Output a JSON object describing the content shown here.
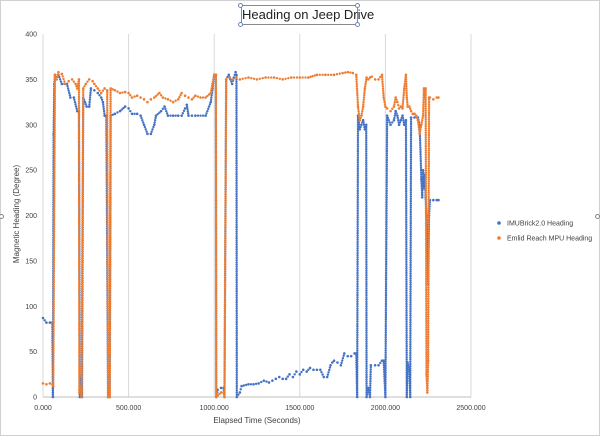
{
  "chart_data": {
    "type": "scatter",
    "title": "Heading on Jeep Drive",
    "xlabel": "Elapsed Time (Seconds)",
    "ylabel": "Magnetic Heading (Degree)",
    "xlim": [
      0,
      2500
    ],
    "ylim": [
      0,
      400
    ],
    "x_ticks": [
      "0.000",
      "500.000",
      "1000.000",
      "1500.000",
      "2000.000",
      "2500.000"
    ],
    "y_ticks": [
      "0",
      "50",
      "100",
      "150",
      "200",
      "250",
      "300",
      "350",
      "400"
    ],
    "grid": "vertical",
    "legend_position": "right",
    "series": [
      {
        "name": "IMUBrick2.0 Heading",
        "color": "#4472C4",
        "points": [
          [
            0,
            87
          ],
          [
            20,
            82
          ],
          [
            40,
            82
          ],
          [
            55,
            82
          ],
          [
            58,
            0
          ],
          [
            62,
            290
          ],
          [
            66,
            345
          ],
          [
            70,
            355
          ],
          [
            90,
            355
          ],
          [
            110,
            345
          ],
          [
            140,
            345
          ],
          [
            160,
            330
          ],
          [
            180,
            330
          ],
          [
            200,
            315
          ],
          [
            210,
            315
          ],
          [
            215,
            0
          ],
          [
            220,
            20
          ],
          [
            228,
            0
          ],
          [
            235,
            330
          ],
          [
            245,
            325
          ],
          [
            255,
            320
          ],
          [
            270,
            320
          ],
          [
            280,
            340
          ],
          [
            300,
            338
          ],
          [
            320,
            335
          ],
          [
            340,
            330
          ],
          [
            350,
            325
          ],
          [
            360,
            310
          ],
          [
            370,
            310
          ],
          [
            380,
            0
          ],
          [
            385,
            15
          ],
          [
            390,
            0
          ],
          [
            395,
            310
          ],
          [
            420,
            312
          ],
          [
            450,
            315
          ],
          [
            480,
            320
          ],
          [
            500,
            318
          ],
          [
            520,
            312
          ],
          [
            550,
            312
          ],
          [
            570,
            310
          ],
          [
            590,
            300
          ],
          [
            610,
            290
          ],
          [
            630,
            290
          ],
          [
            650,
            300
          ],
          [
            660,
            310
          ],
          [
            690,
            315
          ],
          [
            710,
            320
          ],
          [
            730,
            310
          ],
          [
            760,
            310
          ],
          [
            790,
            310
          ],
          [
            810,
            310
          ],
          [
            830,
            318
          ],
          [
            840,
            322
          ],
          [
            850,
            310
          ],
          [
            870,
            310
          ],
          [
            890,
            310
          ],
          [
            950,
            310
          ],
          [
            980,
            325
          ],
          [
            990,
            340
          ],
          [
            1000,
            355
          ],
          [
            1010,
            355
          ],
          [
            1012,
            0
          ],
          [
            1020,
            8
          ],
          [
            1040,
            10
          ],
          [
            1055,
            10
          ],
          [
            1060,
            0
          ],
          [
            1070,
            350
          ],
          [
            1085,
            355
          ],
          [
            1095,
            350
          ],
          [
            1105,
            345
          ],
          [
            1115,
            352
          ],
          [
            1125,
            358
          ],
          [
            1130,
            355
          ],
          [
            1132,
            0
          ],
          [
            1150,
            5
          ],
          [
            1160,
            12
          ],
          [
            1200,
            14
          ],
          [
            1230,
            14
          ],
          [
            1260,
            15
          ],
          [
            1290,
            18
          ],
          [
            1320,
            16
          ],
          [
            1340,
            18
          ],
          [
            1360,
            20
          ],
          [
            1380,
            22
          ],
          [
            1400,
            20
          ],
          [
            1420,
            20
          ],
          [
            1440,
            25
          ],
          [
            1460,
            22
          ],
          [
            1480,
            28
          ],
          [
            1500,
            25
          ],
          [
            1520,
            30
          ],
          [
            1540,
            28
          ],
          [
            1560,
            32
          ],
          [
            1580,
            30
          ],
          [
            1600,
            30
          ],
          [
            1620,
            30
          ],
          [
            1640,
            22
          ],
          [
            1660,
            22
          ],
          [
            1680,
            35
          ],
          [
            1690,
            38
          ],
          [
            1700,
            40
          ],
          [
            1720,
            38
          ],
          [
            1740,
            35
          ],
          [
            1760,
            48
          ],
          [
            1780,
            45
          ],
          [
            1800,
            45
          ],
          [
            1820,
            48
          ],
          [
            1830,
            48
          ],
          [
            1835,
            0
          ],
          [
            1840,
            310
          ],
          [
            1850,
            295
          ],
          [
            1860,
            300
          ],
          [
            1870,
            305
          ],
          [
            1880,
            295
          ],
          [
            1888,
            300
          ],
          [
            1890,
            0
          ],
          [
            1900,
            10
          ],
          [
            1910,
            0
          ],
          [
            1915,
            35
          ],
          [
            1940,
            35
          ],
          [
            1960,
            35
          ],
          [
            1980,
            40
          ],
          [
            1990,
            40
          ],
          [
            2000,
            0
          ],
          [
            2010,
            310
          ],
          [
            2030,
            300
          ],
          [
            2050,
            305
          ],
          [
            2060,
            315
          ],
          [
            2070,
            310
          ],
          [
            2080,
            300
          ],
          [
            2090,
            305
          ],
          [
            2100,
            310
          ],
          [
            2110,
            300
          ],
          [
            2120,
            305
          ],
          [
            2125,
            0
          ],
          [
            2130,
            38
          ],
          [
            2140,
            30
          ],
          [
            2145,
            0
          ],
          [
            2150,
            308
          ],
          [
            2170,
            308
          ],
          [
            2190,
            308
          ],
          [
            2200,
            300
          ],
          [
            2210,
            240
          ],
          [
            2215,
            220
          ],
          [
            2220,
            250
          ],
          [
            2225,
            230
          ],
          [
            2230,
            245
          ],
          [
            2235,
            220
          ],
          [
            2240,
            200
          ],
          [
            2245,
            160
          ],
          [
            2250,
            125
          ],
          [
            2255,
            200
          ],
          [
            2260,
            217
          ],
          [
            2280,
            217
          ],
          [
            2300,
            217
          ],
          [
            2310,
            217
          ]
        ]
      },
      {
        "name": "Emlid Reach MPU Heading",
        "color": "#ED7D31",
        "points": [
          [
            0,
            15
          ],
          [
            20,
            14
          ],
          [
            40,
            15
          ],
          [
            55,
            14
          ],
          [
            60,
            12
          ],
          [
            70,
            355
          ],
          [
            80,
            350
          ],
          [
            90,
            358
          ],
          [
            110,
            356
          ],
          [
            130,
            345
          ],
          [
            150,
            348
          ],
          [
            170,
            350
          ],
          [
            190,
            345
          ],
          [
            200,
            340
          ],
          [
            210,
            350
          ],
          [
            212,
            5
          ],
          [
            215,
            12
          ],
          [
            220,
            8
          ],
          [
            225,
            0
          ],
          [
            235,
            340
          ],
          [
            250,
            345
          ],
          [
            270,
            350
          ],
          [
            290,
            348
          ],
          [
            300,
            345
          ],
          [
            320,
            340
          ],
          [
            340,
            335
          ],
          [
            360,
            340
          ],
          [
            375,
            338
          ],
          [
            380,
            0
          ],
          [
            385,
            12
          ],
          [
            390,
            0
          ],
          [
            395,
            340
          ],
          [
            420,
            338
          ],
          [
            450,
            335
          ],
          [
            480,
            336
          ],
          [
            500,
            335
          ],
          [
            520,
            330
          ],
          [
            550,
            332
          ],
          [
            570,
            330
          ],
          [
            590,
            328
          ],
          [
            610,
            325
          ],
          [
            630,
            328
          ],
          [
            650,
            330
          ],
          [
            680,
            335
          ],
          [
            700,
            330
          ],
          [
            730,
            328
          ],
          [
            760,
            325
          ],
          [
            790,
            328
          ],
          [
            810,
            335
          ],
          [
            830,
            332
          ],
          [
            850,
            330
          ],
          [
            870,
            328
          ],
          [
            890,
            332
          ],
          [
            920,
            330
          ],
          [
            950,
            330
          ],
          [
            980,
            335
          ],
          [
            990,
            345
          ],
          [
            1000,
            355
          ],
          [
            1010,
            355
          ],
          [
            1012,
            0
          ],
          [
            1040,
            5
          ],
          [
            1055,
            5
          ],
          [
            1060,
            0
          ],
          [
            1070,
            350
          ],
          [
            1090,
            352
          ],
          [
            1110,
            350
          ],
          [
            1130,
            352
          ],
          [
            1150,
            350
          ],
          [
            1200,
            352
          ],
          [
            1250,
            350
          ],
          [
            1300,
            352
          ],
          [
            1350,
            352
          ],
          [
            1400,
            350
          ],
          [
            1450,
            352
          ],
          [
            1500,
            352
          ],
          [
            1550,
            352
          ],
          [
            1600,
            355
          ],
          [
            1650,
            355
          ],
          [
            1700,
            355
          ],
          [
            1750,
            357
          ],
          [
            1780,
            358
          ],
          [
            1810,
            357
          ],
          [
            1830,
            355
          ],
          [
            1840,
            320
          ],
          [
            1850,
            305
          ],
          [
            1860,
            310
          ],
          [
            1870,
            320
          ],
          [
            1880,
            340
          ],
          [
            1890,
            352
          ],
          [
            1900,
            350
          ],
          [
            1910,
            352
          ],
          [
            1920,
            353
          ],
          [
            1940,
            350
          ],
          [
            1960,
            350
          ],
          [
            1980,
            355
          ],
          [
            1990,
            330
          ],
          [
            2000,
            320
          ],
          [
            2010,
            318
          ],
          [
            2030,
            315
          ],
          [
            2050,
            320
          ],
          [
            2060,
            330
          ],
          [
            2070,
            325
          ],
          [
            2080,
            318
          ],
          [
            2090,
            320
          ],
          [
            2100,
            318
          ],
          [
            2110,
            340
          ],
          [
            2120,
            355
          ],
          [
            2125,
            330
          ],
          [
            2130,
            320
          ],
          [
            2140,
            320
          ],
          [
            2150,
            315
          ],
          [
            2160,
            312
          ],
          [
            2170,
            312
          ],
          [
            2180,
            310
          ],
          [
            2190,
            305
          ],
          [
            2200,
            290
          ],
          [
            2210,
            300
          ],
          [
            2220,
            310
          ],
          [
            2225,
            340
          ],
          [
            2230,
            330
          ],
          [
            2235,
            340
          ],
          [
            2240,
            25
          ],
          [
            2245,
            5
          ],
          [
            2250,
            40
          ],
          [
            2255,
            330
          ],
          [
            2260,
            330
          ],
          [
            2280,
            328
          ],
          [
            2300,
            330
          ],
          [
            2310,
            330
          ]
        ]
      }
    ]
  }
}
